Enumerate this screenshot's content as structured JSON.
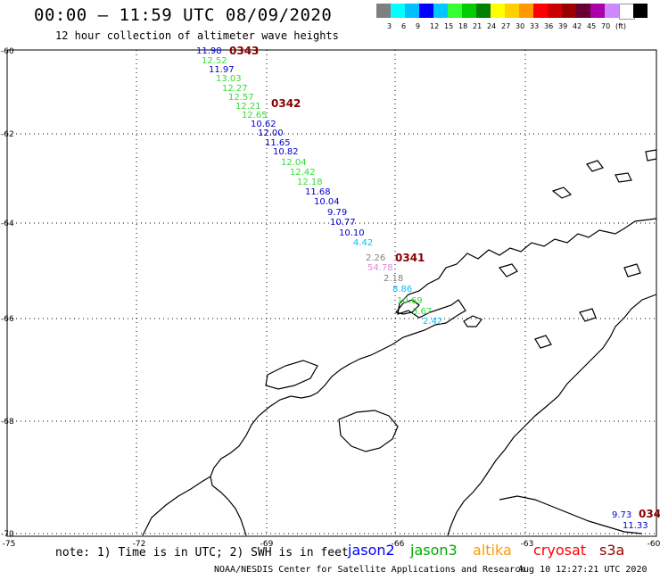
{
  "title": "00:00 – 11:59 UTC 08/09/2020",
  "subtitle": "12 hour collection of altimeter wave heights",
  "legend": {
    "colors": [
      "#7f7f7f",
      "#00ffff",
      "#00bfff",
      "#0000ff",
      "#00c8ff",
      "#33ff33",
      "#00cc00",
      "#008000",
      "#ffff00",
      "#ffd000",
      "#ff9900",
      "#ff0000",
      "#cc0000",
      "#990000",
      "#660033",
      "#aa00aa",
      "#cc88ff",
      "#ffffff",
      "#000000"
    ],
    "levels": [
      "3",
      "6",
      "9",
      "12",
      "15",
      "18",
      "21",
      "24",
      "27",
      "30",
      "33",
      "36",
      "39",
      "42",
      "45",
      "70",
      "(ft)"
    ]
  },
  "lat_labels": [
    "-60",
    "-62",
    "-64",
    "-66",
    "-68",
    "-70"
  ],
  "lon_labels": [
    "-75",
    "-72",
    "-69",
    "-66",
    "-63",
    "-60"
  ],
  "passes": [
    "0343",
    "0342",
    "0341",
    "034"
  ],
  "swh_values": [
    {
      "v": "11.98",
      "c": "#0000cc"
    },
    {
      "v": "12.52",
      "c": "#33dd33"
    },
    {
      "v": "11.97",
      "c": "#0000cc"
    },
    {
      "v": "13.03",
      "c": "#33dd33"
    },
    {
      "v": "12.27",
      "c": "#33dd33"
    },
    {
      "v": "12.57",
      "c": "#33dd33"
    },
    {
      "v": "12.21",
      "c": "#33dd33"
    },
    {
      "v": "12.65",
      "c": "#33dd33"
    },
    {
      "v": "10.62",
      "c": "#0000cc"
    },
    {
      "v": "12.00",
      "c": "#0000cc"
    },
    {
      "v": "11.65",
      "c": "#0000cc"
    },
    {
      "v": "10.82",
      "c": "#0000cc"
    },
    {
      "v": "12.04",
      "c": "#33dd33"
    },
    {
      "v": "12.42",
      "c": "#33dd33"
    },
    {
      "v": "12.18",
      "c": "#33dd33"
    },
    {
      "v": "11.68",
      "c": "#0000cc"
    },
    {
      "v": "10.04",
      "c": "#0000cc"
    },
    {
      "v": "9.79",
      "c": "#0000cc"
    },
    {
      "v": "10.77",
      "c": "#0000cc"
    },
    {
      "v": "10.10",
      "c": "#0000cc"
    },
    {
      "v": "4.42",
      "c": "#00bfff"
    },
    {
      "v": "2.26",
      "c": "#808080"
    },
    {
      "v": "54.78",
      "c": "#dd88dd"
    },
    {
      "v": "2.18",
      "c": "#808080"
    },
    {
      "v": "8.86",
      "c": "#00bfff"
    },
    {
      "v": "10.69",
      "c": "#33dd33"
    },
    {
      "v": "3.67",
      "c": "#33dd33"
    },
    {
      "v": "2.42",
      "c": "#00bfff"
    },
    {
      "v": "9.73",
      "c": "#0000cc"
    },
    {
      "v": "11.33",
      "c": "#0000cc"
    }
  ],
  "note": "note: 1) Time is in UTC; 2) SWH is in feet",
  "satellites": [
    {
      "name": "jason2",
      "color": "#0000ff"
    },
    {
      "name": "jason3",
      "color": "#00aa00"
    },
    {
      "name": "altika",
      "color": "#ff9900"
    },
    {
      "name": "cryosat",
      "color": "#ff0000"
    },
    {
      "name": "s3a",
      "color": "#990000"
    }
  ],
  "credit": "NOAA/NESDIS Center for Satellite Applications and Research",
  "timestamp": "Aug 10 12:27:21 UTC 2020"
}
